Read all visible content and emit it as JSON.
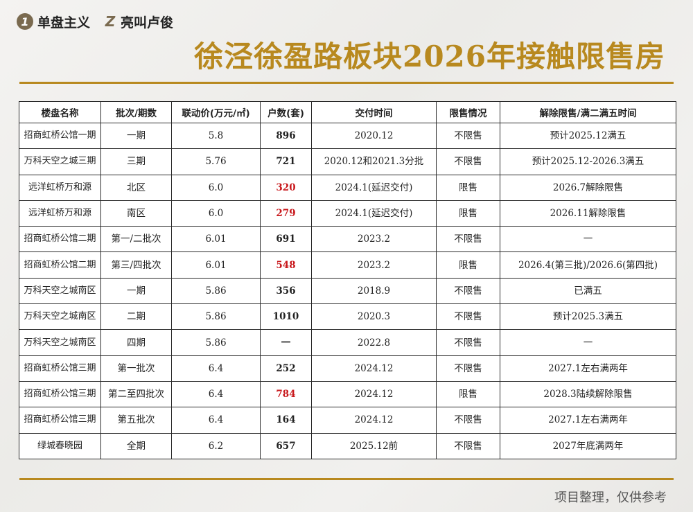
{
  "header": {
    "brand_logo": "1",
    "brand_name": "单盘主义",
    "author_logo": "Z",
    "author_name": "亮叫卢俊"
  },
  "title": "徐泾徐盈路板块2026年接触限售房",
  "table": {
    "columns": [
      "楼盘名称",
      "批次/期数",
      "联动价(万元/㎡)",
      "户数(套)",
      "交付时间",
      "限售情况",
      "解除限售/满二满五时间"
    ],
    "rows": [
      {
        "name": "招商虹桥公馆一期",
        "batch": "一期",
        "price": "5.8",
        "units": "896",
        "units_red": false,
        "delivery": "2020.12",
        "status": "不限售",
        "release": "预计2025.12满五"
      },
      {
        "name": "万科天空之城三期",
        "batch": "三期",
        "price": "5.76",
        "units": "721",
        "units_red": false,
        "delivery": "2020.12和2021.3分批",
        "status": "不限售",
        "release": "预计2025.12-2026.3满五"
      },
      {
        "name": "远洋虹桥万和源",
        "batch": "北区",
        "price": "6.0",
        "units": "320",
        "units_red": true,
        "delivery": "2024.1(延迟交付)",
        "status": "限售",
        "release": "2026.7解除限售"
      },
      {
        "name": "远洋虹桥万和源",
        "batch": "南区",
        "price": "6.0",
        "units": "279",
        "units_red": true,
        "delivery": "2024.1(延迟交付)",
        "status": "限售",
        "release": "2026.11解除限售"
      },
      {
        "name": "招商虹桥公馆二期",
        "batch": "第一/二批次",
        "price": "6.01",
        "units": "691",
        "units_red": false,
        "delivery": "2023.2",
        "status": "不限售",
        "release": "一"
      },
      {
        "name": "招商虹桥公馆二期",
        "batch": "第三/四批次",
        "price": "6.01",
        "units": "548",
        "units_red": true,
        "delivery": "2023.2",
        "status": "限售",
        "release": "2026.4(第三批)/2026.6(第四批)"
      },
      {
        "name": "万科天空之城南区",
        "batch": "一期",
        "price": "5.86",
        "units": "356",
        "units_red": false,
        "delivery": "2018.9",
        "status": "不限售",
        "release": "已满五"
      },
      {
        "name": "万科天空之城南区",
        "batch": "二期",
        "price": "5.86",
        "units": "1010",
        "units_red": false,
        "delivery": "2020.3",
        "status": "不限售",
        "release": "预计2025.3满五"
      },
      {
        "name": "万科天空之城南区",
        "batch": "四期",
        "price": "5.86",
        "units": "一",
        "units_red": false,
        "delivery": "2022.8",
        "status": "不限售",
        "release": "一"
      },
      {
        "name": "招商虹桥公馆三期",
        "batch": "第一批次",
        "price": "6.4",
        "units": "252",
        "units_red": false,
        "delivery": "2024.12",
        "status": "不限售",
        "release": "2027.1左右满两年"
      },
      {
        "name": "招商虹桥公馆三期",
        "batch": "第二至四批次",
        "price": "6.4",
        "units": "784",
        "units_red": true,
        "delivery": "2024.12",
        "status": "限售",
        "release": "2028.3陆续解除限售"
      },
      {
        "name": "招商虹桥公馆三期",
        "batch": "第五批次",
        "price": "6.4",
        "units": "164",
        "units_red": false,
        "delivery": "2024.12",
        "status": "不限售",
        "release": "2027.1左右满两年"
      },
      {
        "name": "绿城春晓园",
        "batch": "全期",
        "price": "6.2",
        "units": "657",
        "units_red": false,
        "delivery": "2025.12前",
        "status": "不限售",
        "release": "2027年底满两年"
      }
    ]
  },
  "footer": {
    "note": "项目整理，仅供参考"
  },
  "colors": {
    "accent_gold": "#b8891f",
    "highlight_red": "#c8171b"
  }
}
